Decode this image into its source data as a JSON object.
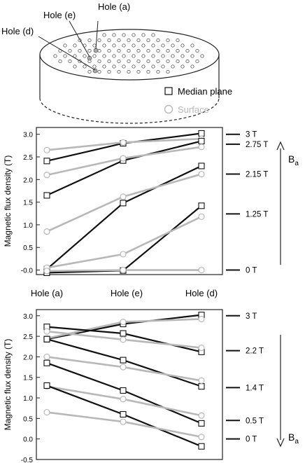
{
  "schematic": {
    "hole_labels": [
      "Hole (a)",
      "Hole (e)",
      "Hole (d)"
    ]
  },
  "legend": {
    "items": [
      {
        "label": "Median plane",
        "marker": "square",
        "color": "#111111"
      },
      {
        "label": "Surface",
        "marker": "circle",
        "color": "#b8b8b8"
      }
    ]
  },
  "colors": {
    "median": "#111111",
    "surface": "#b8b8b8"
  },
  "chart_data": [
    {
      "type": "line",
      "x": [
        "Hole (a)",
        "Hole (e)",
        "Hole (d)"
      ],
      "ylabel": "Magnetic flux density (T)",
      "ylim": [
        -0.1,
        3.15
      ],
      "yticks": [
        "-0.0",
        "0.5",
        "1.0",
        "1.5",
        "2.0",
        "2.5",
        "3.0"
      ],
      "field_labels": [
        "3 T",
        "2.75 T",
        "2.15 T",
        "1.25 T",
        "0 T"
      ],
      "field_label_values": [
        3.0,
        2.78,
        2.12,
        1.24,
        0.0
      ],
      "arrow_label": "B",
      "arrow_subscript": "a",
      "arrow_direction": "up",
      "series": [
        {
          "type": "median",
          "values": [
            2.41,
            2.8,
            3.02
          ]
        },
        {
          "type": "surface",
          "values": [
            2.65,
            2.82,
            2.9
          ]
        },
        {
          "type": "median",
          "values": [
            1.65,
            2.42,
            2.85
          ]
        },
        {
          "type": "surface",
          "values": [
            2.1,
            2.47,
            2.72
          ]
        },
        {
          "type": "median",
          "values": [
            0.02,
            1.48,
            2.3
          ]
        },
        {
          "type": "surface",
          "values": [
            0.85,
            1.62,
            2.12
          ]
        },
        {
          "type": "median",
          "values": [
            -0.06,
            -0.01,
            1.42
          ]
        },
        {
          "type": "surface",
          "values": [
            0.05,
            0.35,
            1.18
          ]
        },
        {
          "type": "surface",
          "values": [
            -0.02,
            0.0,
            0.0
          ]
        }
      ]
    },
    {
      "type": "line",
      "x": [
        "Hole (a)",
        "Hole (e)",
        "Hole (d)"
      ],
      "ylabel": "Magnetic flux density (T)",
      "ylim": [
        -0.5,
        3.15
      ],
      "yticks": [
        "-0.5",
        "0.0",
        "0.5",
        "1.0",
        "1.5",
        "2.0",
        "2.5",
        "3.0"
      ],
      "field_labels": [
        "3 T",
        "2.2 T",
        "1.4 T",
        "0.5 T",
        "0 T"
      ],
      "field_label_values": [
        3.0,
        2.15,
        1.25,
        0.45,
        0.0
      ],
      "arrow_label": "B",
      "arrow_subscript": "a",
      "arrow_direction": "down",
      "series": [
        {
          "type": "median",
          "values": [
            2.43,
            2.8,
            3.02
          ]
        },
        {
          "type": "surface",
          "values": [
            2.45,
            2.85,
            2.92
          ]
        },
        {
          "type": "median",
          "values": [
            2.73,
            2.57,
            2.12
          ]
        },
        {
          "type": "surface",
          "values": [
            2.62,
            2.42,
            2.22
          ]
        },
        {
          "type": "median",
          "values": [
            2.43,
            1.92,
            1.28
          ]
        },
        {
          "type": "surface",
          "values": [
            2.0,
            1.75,
            1.42
          ]
        },
        {
          "type": "median",
          "values": [
            1.85,
            1.18,
            0.38
          ]
        },
        {
          "type": "surface",
          "values": [
            1.28,
            0.97,
            0.57
          ]
        },
        {
          "type": "median",
          "values": [
            1.3,
            0.6,
            -0.18
          ]
        },
        {
          "type": "surface",
          "values": [
            0.65,
            0.42,
            0.05
          ]
        }
      ]
    }
  ]
}
